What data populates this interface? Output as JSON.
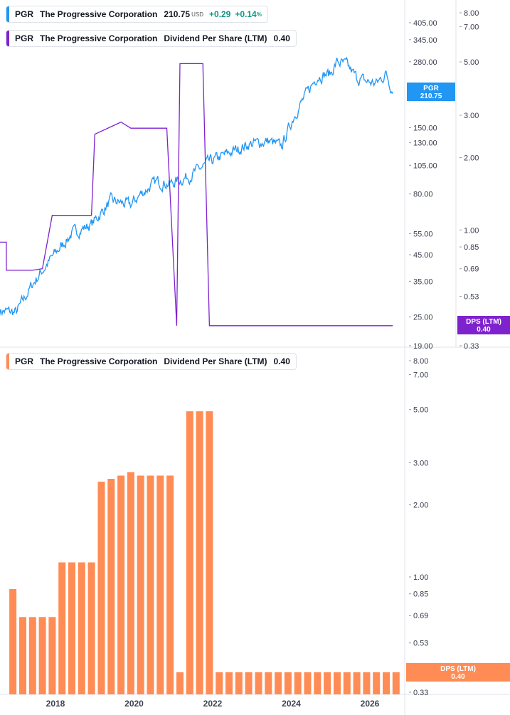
{
  "legend_price": {
    "ticker": "PGR",
    "name": "The Progressive Corporation",
    "price": "210.75",
    "currency": "USD",
    "change": "+0.29",
    "change_pct": "+0.14",
    "pct_sign": "%",
    "color": "#2196f3"
  },
  "legend_dps_top": {
    "ticker": "PGR",
    "name": "The Progressive Corporation",
    "metric": "Dividend Per Share (LTM)",
    "value": "0.40",
    "color": "#7e22ce"
  },
  "legend_dps_bottom": {
    "ticker": "PGR",
    "name": "The Progressive Corporation",
    "metric": "Dividend Per Share (LTM)",
    "value": "0.40",
    "color": "#ff8a50"
  },
  "tags": {
    "price_label": "PGR",
    "price_value": "210.75",
    "dps_label": "DPS (LTM)",
    "dps_value": "0.40"
  },
  "colors": {
    "price_line": "#2196f3",
    "dps_line": "#7e22ce",
    "dps_bar": "#ff8c55",
    "axis_text": "#3d4150",
    "divider": "#e0e3eb"
  },
  "chart_data": [
    {
      "type": "line",
      "scale": "log",
      "series": [
        {
          "name": "PGR",
          "x": [
            "2016-08",
            "2017-01",
            "2017-06",
            "2017-12",
            "2018-06",
            "2018-12",
            "2019-06",
            "2019-12",
            "2020-03",
            "2020-08",
            "2020-12",
            "2021-06",
            "2021-12",
            "2022-06",
            "2022-12",
            "2023-06",
            "2023-10",
            "2024-02",
            "2024-06",
            "2024-09",
            "2025-01",
            "2025-03",
            "2025-06",
            "2025-09",
            "2025-12",
            "2026-03",
            "2026-06",
            "2026-08"
          ],
          "values": [
            26.5,
            26,
            34,
            44,
            55,
            60,
            75,
            72,
            80,
            90,
            88,
            95,
            108,
            118,
            128,
            132,
            125,
            170,
            210,
            245,
            250,
            280,
            270,
            240,
            232,
            228,
            250,
            210.75
          ]
        },
        {
          "name": "Dividend Per Share (LTM)",
          "axis": "right",
          "x": [
            "2016-08",
            "2016-10",
            "2016-10",
            "2017-05",
            "2017-06",
            "2017-09",
            "2017-12",
            "2018-12",
            "2019-01",
            "2019-09",
            "2019-12",
            "2020-10",
            "2020-11",
            "2021-02",
            "2021-03",
            "2021-06",
            "2021-10",
            "2021-12",
            "2022-01",
            "2026-08"
          ],
          "values": [
            0.89,
            0.89,
            0.68,
            0.68,
            0.68,
            0.69,
            1.15,
            1.15,
            2.5,
            2.81,
            2.65,
            2.65,
            2.65,
            0.4,
            4.92,
            4.92,
            4.92,
            0.4,
            0.4,
            0.4
          ]
        }
      ],
      "y_ticks_left": [
        "405.00",
        "345.00",
        "280.00",
        "150.00",
        "130.00",
        "105.00",
        "80.00",
        "55.00",
        "45.00",
        "35.00",
        "25.00",
        "19.00"
      ],
      "y_ticks_right": [
        "8.00",
        "7.00",
        "5.00",
        "3.00",
        "2.00",
        "1.00",
        "0.85",
        "0.69",
        "0.53",
        "0.33"
      ]
    },
    {
      "type": "bar",
      "scale": "log",
      "series": [
        {
          "name": "Dividend Per Share (LTM)",
          "x": [
            "2016-12",
            "2017-03",
            "2017-06",
            "2017-09",
            "2017-12",
            "2018-03",
            "2018-06",
            "2018-09",
            "2018-12",
            "2019-03",
            "2019-06",
            "2019-09",
            "2019-12",
            "2020-03",
            "2020-06",
            "2020-09",
            "2020-12",
            "2021-03",
            "2021-06",
            "2021-09",
            "2021-12",
            "2022-03",
            "2022-06",
            "2022-09",
            "2022-12",
            "2023-03",
            "2023-06",
            "2023-09",
            "2023-12",
            "2024-03",
            "2024-06",
            "2024-09",
            "2024-12",
            "2025-03",
            "2025-06",
            "2025-09",
            "2025-12",
            "2026-03",
            "2026-06",
            "2026-09"
          ],
          "values": [
            0.89,
            0.68,
            0.68,
            0.68,
            0.68,
            1.15,
            1.15,
            1.15,
            1.15,
            2.5,
            2.57,
            2.65,
            2.74,
            2.65,
            2.65,
            2.65,
            2.65,
            0.4,
            4.92,
            4.92,
            4.92,
            0.4,
            0.4,
            0.4,
            0.4,
            0.4,
            0.4,
            0.4,
            0.4,
            0.4,
            0.4,
            0.4,
            0.4,
            0.4,
            0.4,
            0.4,
            0.4,
            0.4,
            0.4,
            0.4
          ]
        }
      ],
      "y_ticks": [
        "8.00",
        "7.00",
        "5.00",
        "3.00",
        "2.00",
        "1.00",
        "0.85",
        "0.69",
        "0.53",
        "0.33"
      ],
      "x_ticks": [
        "2018",
        "2020",
        "2022",
        "2024",
        "2026"
      ]
    }
  ]
}
